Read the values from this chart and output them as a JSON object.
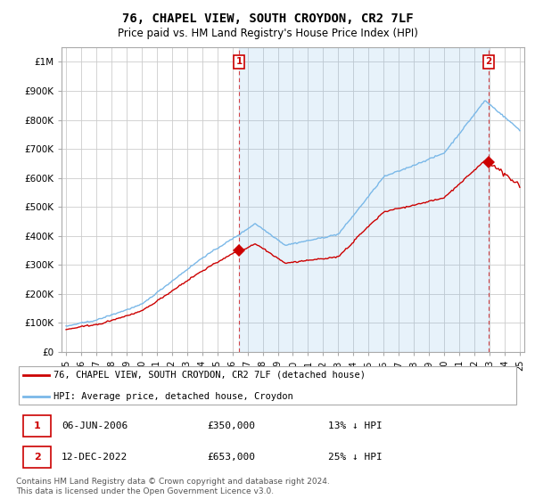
{
  "title": "76, CHAPEL VIEW, SOUTH CROYDON, CR2 7LF",
  "subtitle": "Price paid vs. HM Land Registry's House Price Index (HPI)",
  "title_fontsize": 10,
  "subtitle_fontsize": 8.5,
  "hpi_color": "#7ab8e8",
  "hpi_fill_color": "#daeaf7",
  "property_color": "#cc0000",
  "marker_color": "#cc0000",
  "background_color": "#ffffff",
  "grid_color": "#cccccc",
  "sale1": {
    "date": "06-JUN-2006",
    "price": 350000,
    "hpi_rel": "13% ↓ HPI",
    "year": 2006.44
  },
  "sale2": {
    "date": "12-DEC-2022",
    "price": 653000,
    "hpi_rel": "25% ↓ HPI",
    "year": 2022.95
  },
  "ylim": [
    0,
    1050000
  ],
  "xlim": [
    1994.7,
    2025.3
  ],
  "legend_label1": "76, CHAPEL VIEW, SOUTH CROYDON, CR2 7LF (detached house)",
  "legend_label2": "HPI: Average price, detached house, Croydon",
  "footer": "Contains HM Land Registry data © Crown copyright and database right 2024.\nThis data is licensed under the Open Government Licence v3.0.",
  "yticks": [
    0,
    100000,
    200000,
    300000,
    400000,
    500000,
    600000,
    700000,
    800000,
    900000,
    1000000
  ],
  "ytick_labels": [
    "£0",
    "£100K",
    "£200K",
    "£300K",
    "£400K",
    "£500K",
    "£600K",
    "£700K",
    "£800K",
    "£900K",
    "£1M"
  ]
}
